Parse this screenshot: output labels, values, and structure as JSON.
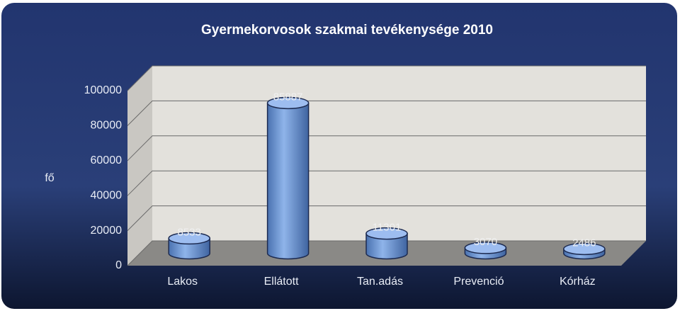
{
  "chart_data": {
    "type": "bar3d",
    "title": "Gyermekorvosok szakmai tevékenysége 2010",
    "y_label": "fő",
    "categories": [
      "Lakos",
      "Ellátott",
      "Tan.adás",
      "Prevenció",
      "Kórház"
    ],
    "values": [
      8533,
      85887,
      11301,
      3070,
      2486
    ],
    "color": "#6f9bd8",
    "ylim": [
      0,
      100000
    ],
    "yticks": [
      0,
      20000,
      40000,
      60000,
      80000,
      100000
    ],
    "grid": true
  }
}
